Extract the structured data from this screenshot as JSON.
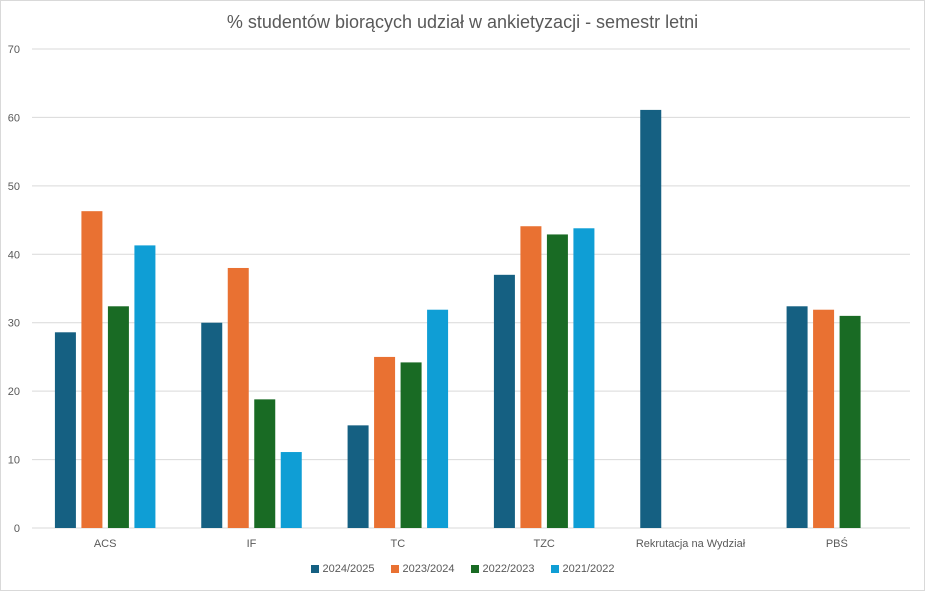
{
  "chart_data": {
    "type": "bar",
    "title": "% studentów biorących udział w ankietyzacji - semestr letni",
    "categories": [
      "ACS",
      "IF",
      "TC",
      "TZC",
      "Rekrutacja na Wydział",
      "PBŚ"
    ],
    "ylim": [
      0,
      70
    ],
    "yticks": [
      0,
      10,
      20,
      30,
      40,
      50,
      60,
      70
    ],
    "grid": true,
    "legend_position": "bottom",
    "series": [
      {
        "name": "2024/2025",
        "color": "#156082",
        "values": [
          28.6,
          30.0,
          15.0,
          37.0,
          61.1,
          32.4
        ]
      },
      {
        "name": "2023/2024",
        "color": "#E97132",
        "values": [
          46.3,
          38.0,
          25.0,
          44.1,
          null,
          31.9
        ]
      },
      {
        "name": "2022/2023",
        "color": "#196B24",
        "values": [
          32.4,
          18.8,
          24.2,
          42.9,
          null,
          31.0
        ]
      },
      {
        "name": "2021/2022",
        "color": "#0F9ED5",
        "values": [
          41.3,
          11.1,
          31.9,
          43.8,
          null,
          null
        ]
      }
    ]
  }
}
